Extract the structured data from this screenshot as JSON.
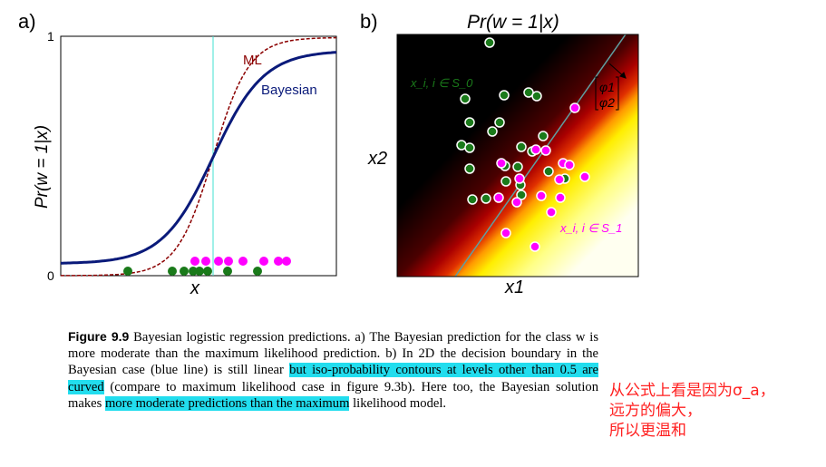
{
  "panel_a": {
    "letter": "a)",
    "ylabel": "Pr(w = 1|x)",
    "xlabel": "x",
    "y_tick_top": "1",
    "y_tick_bottom": "0",
    "legend_ml": "ML",
    "legend_bayes": "Bayesian",
    "colors": {
      "ml": "#8b0000",
      "bayes": "#0a1a7a",
      "class0": "#1a7a1a",
      "class1": "#ff00ff",
      "boundary": "#40e0d0"
    }
  },
  "panel_b": {
    "letter": "b)",
    "title": "Pr(w = 1|x)",
    "xlabel": "x1",
    "ylabel": "x2",
    "class0_label": "x_i, i ∈ S_0",
    "class1_label": "x_i, i ∈ S_1",
    "phi_top": "φ1",
    "phi_bottom": "φ2"
  },
  "caption": {
    "figure_label": "Figure 9.9",
    "part1": " Bayesian logistic regression predictions. a) The Bayesian prediction for the class w is more moderate than the maximum likelihood prediction. b) In 2D the decision boundary in the Bayesian case (blue line) is still linear ",
    "highlight1": "but iso-probability contours at levels other than 0.5 are curved",
    "part2": " (compare to maximum likelihood case in figure 9.3b). Here too, the Bayesian solution makes ",
    "highlight2": "more moderate predictions than the maximum",
    "part3": " likelihood model."
  },
  "note": {
    "line1": "从公式上看是因为σ_a，",
    "line2": "远方的偏大，",
    "line3": "所以更温和"
  }
}
